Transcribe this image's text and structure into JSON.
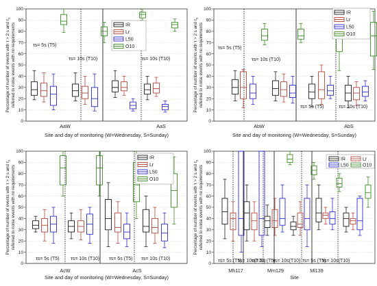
{
  "colors": {
    "IR": "#1a1a1a",
    "Lr": "#b5453a",
    "L50": "#2a2ad0",
    "O10": "#3a8a22"
  },
  "chart_data": [
    {
      "type": "box",
      "ylabel_line1": "Percentage of number of events with τ > 2 s and τ",
      "ylabel_line1_sub": "s",
      "ylabel_line2": "referred to noise events with no requirements",
      "xlabel": "Site and day of monitoring (W=Wednesday, S=Sunday)",
      "ylim": [
        0,
        100
      ],
      "yticks": [
        "0",
        "10",
        "20",
        "30",
        "40",
        "50",
        "60",
        "70",
        "80",
        "90",
        "100"
      ],
      "groups": [
        "AaW",
        "AaS"
      ],
      "annotations": [
        "τs= 5s (T5)",
        "τs= 10s (T10)",
        "τs= 5s (T5)",
        "τs= 10s (T10)"
      ],
      "legend": [
        "IR",
        "Lr",
        "L50",
        "O10"
      ],
      "boxes": [
        {
          "series": "IR",
          "min": 19,
          "q1": 23,
          "med": 28,
          "q3": 35,
          "max": 45
        },
        {
          "series": "Lr",
          "min": 17,
          "q1": 22,
          "med": 27,
          "q3": 34,
          "max": 43
        },
        {
          "series": "L50",
          "min": 10,
          "q1": 14,
          "med": 24,
          "q3": 31,
          "max": 42
        },
        {
          "series": "O10",
          "min": 79,
          "q1": 86,
          "med": 89,
          "q3": 95,
          "max": 100
        },
        {
          "series": "IR",
          "min": 18,
          "q1": 22,
          "med": 27,
          "q3": 33,
          "max": 43
        },
        {
          "series": "Lr",
          "min": 15,
          "q1": 20,
          "med": 25,
          "q3": 31,
          "max": 40
        },
        {
          "series": "L50",
          "min": 9,
          "q1": 13,
          "med": 20,
          "q3": 30,
          "max": 42
        },
        {
          "series": "O10",
          "min": 70,
          "q1": 76,
          "med": 80,
          "q3": 84,
          "max": 88
        },
        {
          "series": "IR",
          "min": 21,
          "q1": 26,
          "med": 30,
          "q3": 36,
          "max": 45
        },
        {
          "series": "Lr",
          "min": 23,
          "q1": 27,
          "med": 30,
          "q3": 35,
          "max": 40
        },
        {
          "series": "L50",
          "min": 9,
          "q1": 11,
          "med": 14,
          "q3": 17,
          "max": 20
        },
        {
          "series": "O10",
          "min": 89,
          "q1": 92,
          "med": 95,
          "q3": 97,
          "max": 100
        },
        {
          "series": "IR",
          "min": 19,
          "q1": 24,
          "med": 28,
          "q3": 33,
          "max": 40
        },
        {
          "series": "Lr",
          "min": 22,
          "q1": 25,
          "med": 29,
          "q3": 34,
          "max": 39
        },
        {
          "series": "L50",
          "min": 8,
          "q1": 10,
          "med": 13,
          "q3": 15,
          "max": 18
        },
        {
          "series": "O10",
          "min": 80,
          "q1": 83,
          "med": 86,
          "q3": 88,
          "max": 91
        }
      ]
    },
    {
      "type": "box",
      "ylabel_line1": "Percentage of number of events with τ > 2 s and τ",
      "ylabel_line1_sub": "s",
      "ylabel_line2": "referred to noise events with no requirements",
      "xlabel": "Site and day of monitoring (W=Wednesday, S=Sunday)",
      "ylim": [
        0,
        100
      ],
      "yticks": [
        "0",
        "10",
        "20",
        "30",
        "40",
        "50",
        "60",
        "70",
        "80",
        "90",
        "100"
      ],
      "groups": [
        "AbW",
        "AbS"
      ],
      "annotations": [
        "τs= 5s (T5)",
        "τs= 10s (T10)",
        "τs= 5s (T5)",
        "τs= 10s (T10)"
      ],
      "legend": [
        "IR",
        "Lr",
        "L50",
        "O10"
      ],
      "boxes": [
        {
          "series": "IR",
          "min": 18,
          "q1": 24,
          "med": 30,
          "q3": 37,
          "max": 45
        },
        {
          "series": "Lr",
          "min": 12,
          "q1": 20,
          "med": 30,
          "q3": 44,
          "max": 46
        },
        {
          "series": "L50",
          "min": 15,
          "q1": 20,
          "med": 25,
          "q3": 33,
          "max": 40
        },
        {
          "series": "O10",
          "min": 68,
          "q1": 72,
          "med": 76,
          "q3": 82,
          "max": 87
        },
        {
          "series": "IR",
          "min": 18,
          "q1": 23,
          "med": 29,
          "q3": 36,
          "max": 44
        },
        {
          "series": "Lr",
          "min": 17,
          "q1": 22,
          "med": 28,
          "q3": 35,
          "max": 42
        },
        {
          "series": "L50",
          "min": 16,
          "q1": 21,
          "med": 25,
          "q3": 32,
          "max": 40
        },
        {
          "series": "O10",
          "min": 70,
          "q1": 73,
          "med": 76,
          "q3": 82,
          "max": 87
        },
        {
          "series": "IR",
          "min": 13,
          "q1": 20,
          "med": 26,
          "q3": 33,
          "max": 40
        },
        {
          "series": "Lr",
          "min": 15,
          "q1": 20,
          "med": 28,
          "q3": 44,
          "max": 50
        },
        {
          "series": "L50",
          "min": 20,
          "q1": 23,
          "med": 27,
          "q3": 32,
          "max": 40
        },
        {
          "series": "O10",
          "min": 45,
          "q1": 62,
          "med": 77,
          "q3": 90,
          "max": 99
        },
        {
          "series": "IR",
          "min": 12,
          "q1": 18,
          "med": 25,
          "q3": 32,
          "max": 40
        },
        {
          "series": "Lr",
          "min": 14,
          "q1": 19,
          "med": 25,
          "q3": 30,
          "max": 35
        },
        {
          "series": "L50",
          "min": 18,
          "q1": 22,
          "med": 26,
          "q3": 31,
          "max": 36
        },
        {
          "series": "O10",
          "min": 46,
          "q1": 58,
          "med": 76,
          "q3": 88,
          "max": 98
        }
      ]
    },
    {
      "type": "box",
      "ylabel_line1": "Percentage of number of events with τ > 2 s and τ",
      "ylabel_line1_sub": "s",
      "ylabel_line2": "referred to noise events with no requirements",
      "xlabel": "Site and day of monitoring (W=Wednesday, S=Sunday)",
      "ylim": [
        0,
        100
      ],
      "yticks": [
        "0",
        "10",
        "20",
        "30",
        "40",
        "50",
        "60",
        "70",
        "80",
        "90",
        "100"
      ],
      "groups": [
        "AcW",
        "AcS"
      ],
      "annotations": [
        "τs= 5s (T5)",
        "τs= 10s (T10)",
        "τs= 5s (T5)",
        "τs= 10s (T10)"
      ],
      "legend": [
        "IR",
        "Lr",
        "L50",
        "O10"
      ],
      "boxes": [
        {
          "series": "IR",
          "min": 28,
          "q1": 31,
          "med": 34,
          "q3": 38,
          "max": 42
        },
        {
          "series": "Lr",
          "min": 20,
          "q1": 28,
          "med": 34,
          "q3": 40,
          "max": 48
        },
        {
          "series": "L50",
          "min": 18,
          "q1": 28,
          "med": 35,
          "q3": 42,
          "max": 50
        },
        {
          "series": "O10",
          "min": 60,
          "q1": 70,
          "med": 85,
          "q3": 96,
          "max": 100
        },
        {
          "series": "IR",
          "min": 22,
          "q1": 28,
          "med": 33,
          "q3": 38,
          "max": 45
        },
        {
          "series": "Lr",
          "min": 21,
          "q1": 28,
          "med": 33,
          "q3": 38,
          "max": 48
        },
        {
          "series": "L50",
          "min": 18,
          "q1": 26,
          "med": 35,
          "q3": 44,
          "max": 50
        },
        {
          "series": "O10",
          "min": 60,
          "q1": 70,
          "med": 85,
          "q3": 96,
          "max": 100
        },
        {
          "series": "IR",
          "min": 15,
          "q1": 30,
          "med": 40,
          "q3": 57,
          "max": 72
        },
        {
          "series": "Lr",
          "min": 18,
          "q1": 28,
          "med": 32,
          "q3": 45,
          "max": 55
        },
        {
          "series": "L50",
          "min": 15,
          "q1": 22,
          "med": 28,
          "q3": 35,
          "max": 45
        },
        {
          "series": "O10",
          "min": 40,
          "q1": 55,
          "med": 70,
          "q3": 90,
          "max": 100
        },
        {
          "series": "IR",
          "min": 15,
          "q1": 28,
          "med": 33,
          "q3": 48,
          "max": 60
        },
        {
          "series": "Lr",
          "min": 18,
          "q1": 27,
          "med": 32,
          "q3": 40,
          "max": 50
        },
        {
          "series": "L50",
          "min": 14,
          "q1": 20,
          "med": 27,
          "q3": 35,
          "max": 45
        },
        {
          "series": "O10",
          "min": 35,
          "q1": 50,
          "med": 65,
          "q3": 80,
          "max": 95
        }
      ]
    },
    {
      "type": "box",
      "ylabel_line1": "Percentage of number of events with τ > 2 s and τ",
      "ylabel_line1_sub": "s",
      "ylabel_line2": "referred to noise events with no requirements",
      "xlabel": "Site",
      "ylim": [
        0,
        100
      ],
      "yticks": [
        "0",
        "10",
        "20",
        "30",
        "40",
        "50",
        "60",
        "70",
        "80",
        "90",
        "100"
      ],
      "groups": [
        "Mh117",
        "Mm129",
        "Ml139"
      ],
      "annotations": [
        "τs= 5s (T5)",
        "τs= 10s(T10)",
        "τs= 5s (T5)",
        "τs= 10s(T10)",
        "τs= 5s (T5)",
        "τs= 10s(T10)"
      ],
      "legend": [
        "IR",
        "Lr",
        "L50",
        "O10"
      ],
      "boxes": [
        {
          "series": "IR",
          "min": 22,
          "q1": 35,
          "med": 46,
          "q3": 58,
          "max": 75
        },
        {
          "series": "Lr",
          "min": 20,
          "q1": 30,
          "med": 40,
          "q3": 45,
          "max": 55
        },
        {
          "series": "L50",
          "min": 10,
          "q1": 25,
          "med": 40,
          "q3": 100,
          "max": 100
        },
        {
          "series": "IR",
          "min": 20,
          "q1": 30,
          "med": 45,
          "q3": 55,
          "max": 70
        },
        {
          "series": "Lr",
          "min": 20,
          "q1": 30,
          "med": 38,
          "q3": 45,
          "max": 55
        },
        {
          "series": "L50",
          "min": 15,
          "q1": 25,
          "med": 40,
          "q3": 100,
          "max": 100
        },
        {
          "series": "IR",
          "min": 25,
          "q1": 32,
          "med": 38,
          "q3": 42,
          "max": 52
        },
        {
          "series": "Lr",
          "min": 25,
          "q1": 32,
          "med": 38,
          "q3": 48,
          "max": 58
        },
        {
          "series": "L50",
          "min": 28,
          "q1": 34,
          "med": 40,
          "q3": 58,
          "max": 70
        },
        {
          "series": "O10",
          "min": 88,
          "q1": 90,
          "med": 93,
          "q3": 97,
          "max": 100
        },
        {
          "series": "IR",
          "min": 25,
          "q1": 30,
          "med": 33,
          "q3": 37,
          "max": 42
        },
        {
          "series": "Lr",
          "min": 25,
          "q1": 32,
          "med": 35,
          "q3": 45,
          "max": 55
        },
        {
          "series": "L50",
          "min": 15,
          "q1": 30,
          "med": 40,
          "q3": 58,
          "max": 70
        },
        {
          "series": "O10",
          "min": 75,
          "q1": 79,
          "med": 83,
          "q3": 87,
          "max": 90
        },
        {
          "series": "IR",
          "min": 30,
          "q1": 37,
          "med": 45,
          "q3": 58,
          "max": 70
        },
        {
          "series": "Lr",
          "min": 35,
          "q1": 40,
          "med": 43,
          "q3": 45,
          "max": 50
        },
        {
          "series": "L50",
          "min": 30,
          "q1": 35,
          "med": 40,
          "q3": 46,
          "max": 58
        },
        {
          "series": "O10",
          "min": 64,
          "q1": 68,
          "med": 71,
          "q3": 76,
          "max": 80
        },
        {
          "series": "IR",
          "min": 28,
          "q1": 33,
          "med": 40,
          "q3": 45,
          "max": 50
        },
        {
          "series": "Lr",
          "min": 30,
          "q1": 35,
          "med": 38,
          "q3": 40,
          "max": 45
        },
        {
          "series": "L50",
          "min": 25,
          "q1": 30,
          "med": 38,
          "q3": 58,
          "max": 60
        },
        {
          "series": "O10",
          "min": 50,
          "q1": 58,
          "med": 63,
          "q3": 70,
          "max": 77
        }
      ]
    }
  ]
}
